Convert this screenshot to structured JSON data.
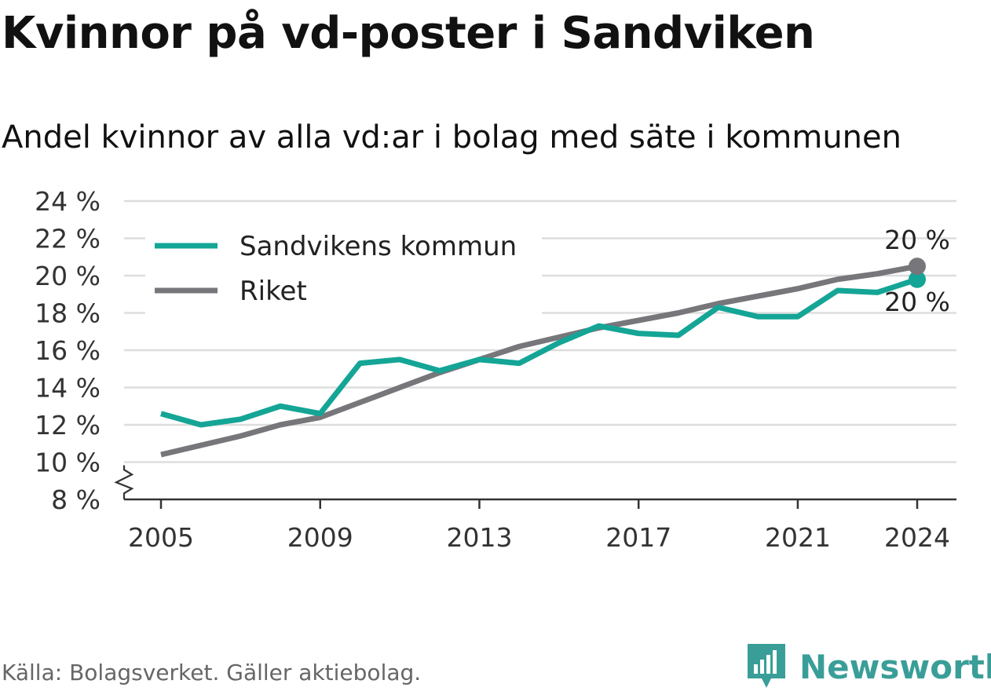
{
  "header": {
    "title": "Kvinnor på vd-poster i Sandviken",
    "subtitle": "Andel kvinnor av alla vd:ar i bolag med säte i kommunen"
  },
  "footer": {
    "source": "Källa: Bolagsverket. Gäller aktiebolag.",
    "brand": "Newsworthy"
  },
  "colors": {
    "sandviken": "#14a596",
    "riket": "#77767b",
    "grid": "#dddddd",
    "axis": "#333333",
    "brand": "#3a9e98"
  },
  "chart_data": {
    "type": "line",
    "x": [
      2005,
      2006,
      2007,
      2008,
      2009,
      2010,
      2011,
      2012,
      2013,
      2014,
      2015,
      2016,
      2017,
      2018,
      2019,
      2020,
      2021,
      2022,
      2023,
      2024
    ],
    "series": [
      {
        "name": "Sandvikens kommun",
        "color": "#14a596",
        "values": [
          12.6,
          12.0,
          12.3,
          13.0,
          12.6,
          15.3,
          15.5,
          14.9,
          15.5,
          15.3,
          16.4,
          17.3,
          16.9,
          16.8,
          18.3,
          17.8,
          17.8,
          19.2,
          19.1,
          19.8
        ],
        "end_label": "20 %"
      },
      {
        "name": "Riket",
        "color": "#77767b",
        "values": [
          10.4,
          10.9,
          11.4,
          12.0,
          12.4,
          13.2,
          14.0,
          14.8,
          15.5,
          16.2,
          16.7,
          17.2,
          17.6,
          18.0,
          18.5,
          18.9,
          19.3,
          19.8,
          20.1,
          20.5
        ],
        "end_label": "20 %"
      }
    ],
    "x_ticks": [
      2005,
      2009,
      2013,
      2017,
      2021,
      2024
    ],
    "x_tick_labels": [
      "2005",
      "2009",
      "2013",
      "2017",
      "2021",
      "2024"
    ],
    "y_ticks": [
      8,
      10,
      12,
      14,
      16,
      18,
      20,
      22,
      24
    ],
    "y_tick_labels": [
      "8 %",
      "10 %",
      "12 %",
      "14 %",
      "16 %",
      "18 %",
      "20 %",
      "22 %",
      "24 %"
    ],
    "xlim": [
      2005,
      2024
    ],
    "ylim": [
      8,
      24
    ],
    "y_axis_break": true,
    "grid": true,
    "legend": "top-left"
  }
}
